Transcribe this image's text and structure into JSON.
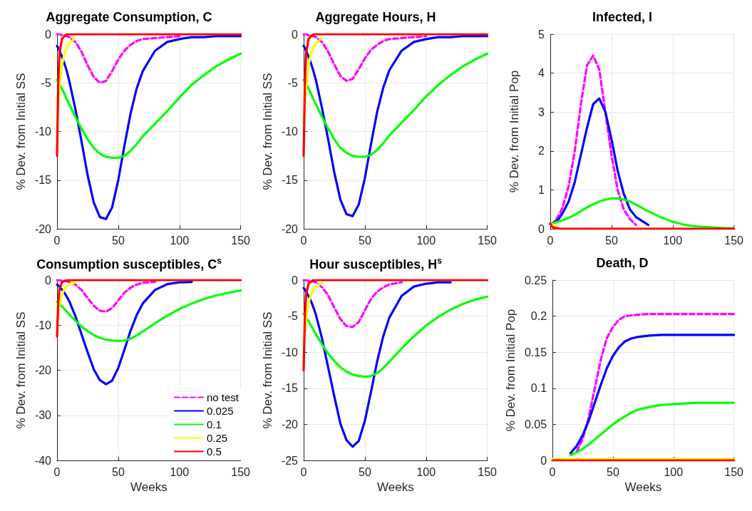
{
  "chart_data": [
    {
      "type": "line",
      "title": "Aggregate Consumption, C",
      "ylabel": "% Dev. from Initial SS",
      "x": [
        0,
        1,
        2,
        4,
        6,
        8,
        10,
        15,
        20,
        25,
        30,
        35,
        40,
        45,
        50,
        55,
        60,
        65,
        70,
        80,
        90,
        100,
        110,
        120,
        130,
        140,
        150
      ],
      "xlim": [
        0,
        150
      ],
      "xticks": [
        0,
        50,
        100,
        150
      ],
      "ylim": [
        -20,
        0
      ],
      "yticks": [
        -20,
        -15,
        -10,
        -5,
        0
      ],
      "grid": true,
      "series": [
        {
          "color": "#ff00ff",
          "line_style": "dashed",
          "values": [
            0,
            0,
            0,
            -0.1,
            -0.15,
            -0.2,
            -0.3,
            -0.8,
            -1.8,
            -3.2,
            -4.4,
            -5,
            -4.8,
            -3.8,
            -2.6,
            -1.7,
            -1.1,
            -0.7,
            -0.5,
            -0.4,
            -0.3,
            -0.2,
            null,
            null,
            null,
            null,
            null
          ]
        },
        {
          "color": "#0000ff",
          "values": [
            -1.2,
            -1.4,
            -1.7,
            -2.3,
            -3,
            -3.8,
            -4.8,
            -7.7,
            -11,
            -14.5,
            -17.3,
            -18.8,
            -19,
            -17.8,
            -15,
            -11.5,
            -8.2,
            -5.6,
            -3.8,
            -1.7,
            -0.8,
            -0.5,
            -0.3,
            -0.3,
            -0.2,
            -0.2,
            -0.2
          ]
        },
        {
          "color": "#00ff00",
          "values": [
            -4.7,
            -4.9,
            -5.1,
            -5.6,
            -6.1,
            -6.7,
            -7.2,
            -8.5,
            -9.7,
            -10.8,
            -11.7,
            -12.3,
            -12.6,
            -12.7,
            -12.7,
            -12.5,
            -12,
            -11.3,
            -10.5,
            -9.2,
            -7.9,
            -6.5,
            -5.2,
            -4.2,
            -3.3,
            -2.6,
            -2
          ]
        },
        {
          "color": "#ffff00",
          "values": [
            -9.2,
            -7.5,
            -5.5,
            -3.2,
            -2,
            -1.3,
            -0.9,
            -0.4,
            null,
            null,
            null,
            null,
            null,
            null,
            null,
            null,
            null,
            null,
            null,
            null,
            null,
            null,
            null,
            null,
            null,
            null,
            null
          ]
        },
        {
          "color": "#ff0000",
          "values": [
            -12.5,
            -5,
            -2,
            -0.5,
            -0.2,
            0,
            0,
            0,
            0,
            0,
            0,
            0,
            0,
            0,
            0,
            0,
            0,
            0,
            0,
            0,
            0,
            0,
            0,
            0,
            0,
            0,
            0
          ]
        }
      ]
    },
    {
      "type": "line",
      "title": "Aggregate Hours, H",
      "ylabel": "% Dev. from Initial SS",
      "x": [
        0,
        1,
        2,
        4,
        6,
        8,
        10,
        15,
        20,
        25,
        30,
        35,
        40,
        45,
        50,
        55,
        60,
        65,
        70,
        80,
        90,
        100,
        110,
        120,
        130,
        140,
        150
      ],
      "xlim": [
        0,
        150
      ],
      "xticks": [
        0,
        50,
        100,
        150
      ],
      "ylim": [
        -20,
        0
      ],
      "yticks": [
        -20,
        -15,
        -10,
        -5,
        0
      ],
      "grid": true,
      "series": [
        {
          "color": "#ff00ff",
          "line_style": "dashed",
          "values": [
            0,
            0,
            0,
            -0.1,
            -0.15,
            -0.2,
            -0.3,
            -0.8,
            -1.8,
            -3.1,
            -4.3,
            -4.8,
            -4.6,
            -3.6,
            -2.5,
            -1.6,
            -1.1,
            -0.7,
            -0.5,
            -0.4,
            -0.3,
            -0.2,
            null,
            null,
            null,
            null,
            null
          ]
        },
        {
          "color": "#0000ff",
          "values": [
            -1.2,
            -1.4,
            -1.7,
            -2.3,
            -3,
            -3.8,
            -4.7,
            -7.6,
            -10.8,
            -14.2,
            -17,
            -18.5,
            -18.7,
            -17.5,
            -14.8,
            -11.3,
            -8,
            -5.5,
            -3.7,
            -1.7,
            -0.8,
            -0.5,
            -0.3,
            -0.3,
            -0.2,
            -0.2,
            -0.2
          ]
        },
        {
          "color": "#00ff00",
          "values": [
            -4.7,
            -4.9,
            -5.1,
            -5.6,
            -6.1,
            -6.7,
            -7.2,
            -8.5,
            -9.7,
            -10.8,
            -11.7,
            -12.2,
            -12.5,
            -12.6,
            -12.6,
            -12.4,
            -11.9,
            -11.2,
            -10.4,
            -9.1,
            -7.8,
            -6.4,
            -5.2,
            -4.2,
            -3.3,
            -2.6,
            -2
          ]
        },
        {
          "color": "#ffff00",
          "values": [
            -9.2,
            -7.5,
            -5.5,
            -3.2,
            -2,
            -1.3,
            -0.9,
            -0.4,
            null,
            null,
            null,
            null,
            null,
            null,
            null,
            null,
            null,
            null,
            null,
            null,
            null,
            null,
            null,
            null,
            null,
            null,
            null
          ]
        },
        {
          "color": "#ff0000",
          "values": [
            -12.5,
            -5,
            -2,
            -0.5,
            -0.2,
            0,
            0,
            0,
            0,
            0,
            0,
            0,
            0,
            0,
            0,
            0,
            0,
            0,
            0,
            0,
            0,
            0,
            0,
            0,
            0,
            0,
            0
          ]
        }
      ]
    },
    {
      "type": "line",
      "title": "Infected, I",
      "ylabel": "% Dev. from Initial Pop",
      "x": [
        0,
        1,
        2,
        4,
        6,
        8,
        10,
        15,
        20,
        25,
        30,
        35,
        40,
        45,
        50,
        55,
        60,
        65,
        70,
        80,
        90,
        100,
        110,
        120,
        130,
        140,
        150
      ],
      "xlim": [
        0,
        150
      ],
      "xticks": [
        0,
        50,
        100,
        150
      ],
      "ylim": [
        0,
        5
      ],
      "yticks": [
        0,
        1,
        2,
        3,
        4,
        5
      ],
      "grid": true,
      "series": [
        {
          "color": "#ff00ff",
          "line_style": "dashed",
          "values": [
            0.13,
            0.13,
            0.15,
            0.2,
            0.3,
            0.4,
            0.55,
            1.1,
            2,
            3.2,
            4.2,
            4.45,
            4.1,
            3,
            1.9,
            1,
            0.5,
            0.25,
            0.1,
            null,
            null,
            null,
            null,
            null,
            null,
            null,
            null
          ]
        },
        {
          "color": "#0000ff",
          "values": [
            0.13,
            0.13,
            0.14,
            0.18,
            0.22,
            0.3,
            0.4,
            0.7,
            1.2,
            1.9,
            2.6,
            3.2,
            3.35,
            3,
            2.3,
            1.5,
            0.9,
            0.5,
            0.3,
            0.1,
            null,
            null,
            null,
            null,
            null,
            null,
            null
          ]
        },
        {
          "color": "#00ff00",
          "values": [
            0.13,
            0.13,
            0.14,
            0.16,
            0.18,
            0.2,
            0.22,
            0.28,
            0.36,
            0.45,
            0.55,
            0.63,
            0.7,
            0.75,
            0.78,
            0.78,
            0.75,
            0.7,
            0.62,
            0.45,
            0.3,
            0.18,
            0.1,
            0.06,
            0.04,
            0.02,
            0.01
          ]
        },
        {
          "color": "#ffff00",
          "values": [
            0.13,
            0.12,
            0.1,
            0.07,
            0.05,
            null,
            null,
            null,
            null,
            null,
            null,
            null,
            null,
            null,
            null,
            null,
            null,
            null,
            null,
            null,
            null,
            null,
            null,
            null,
            null,
            null,
            null
          ]
        },
        {
          "color": "#ff0000",
          "values": [
            0.13,
            0.08,
            0.04,
            0.02,
            0.01,
            0,
            0,
            0,
            0,
            0,
            0,
            0,
            0,
            0,
            0,
            0,
            0,
            0,
            0,
            0,
            0,
            0,
            0,
            0,
            0,
            0,
            0
          ]
        }
      ]
    },
    {
      "type": "line",
      "title": "Consumption susceptibles, C$^{s}$",
      "xlabel": "Weeks",
      "ylabel": "% Dev. from Initial SS",
      "legend": "bottom right",
      "x": [
        0,
        1,
        2,
        4,
        6,
        8,
        10,
        15,
        20,
        25,
        30,
        35,
        40,
        45,
        50,
        55,
        60,
        65,
        70,
        80,
        90,
        100,
        110,
        120,
        130,
        140,
        150
      ],
      "xlim": [
        0,
        150
      ],
      "xticks": [
        0,
        50,
        100,
        150
      ],
      "ylim": [
        -40,
        0
      ],
      "yticks": [
        -40,
        -30,
        -20,
        -10,
        0
      ],
      "grid": true,
      "series": [
        {
          "name": "no test",
          "color": "#ff00ff",
          "line_style": "dashed",
          "values": [
            0,
            0,
            0,
            -0.2,
            -0.2,
            -0.3,
            -0.4,
            -1,
            -2.2,
            -4,
            -5.7,
            -6.8,
            -7,
            -6.2,
            -4.5,
            -2.8,
            -1.7,
            -1,
            -0.6,
            -0.4,
            null,
            null,
            null,
            null,
            null,
            null,
            null
          ]
        },
        {
          "name": "0.025",
          "color": "#0000ff",
          "values": [
            -1,
            -1.2,
            -1.5,
            -2.1,
            -2.8,
            -3.7,
            -4.7,
            -8,
            -12,
            -16,
            -19.8,
            -22.2,
            -23.1,
            -22.3,
            -19.5,
            -15.5,
            -11.3,
            -7.8,
            -5.2,
            -2.2,
            -0.9,
            -0.5,
            -0.4,
            null,
            null,
            null,
            null
          ]
        },
        {
          "name": "0.1",
          "color": "#00ff00",
          "values": [
            -4.8,
            -5,
            -5.3,
            -5.8,
            -6.4,
            -7,
            -7.6,
            -9,
            -10.3,
            -11.3,
            -12.2,
            -12.8,
            -13.2,
            -13.4,
            -13.5,
            -13.4,
            -13,
            -12.3,
            -11.4,
            -9.6,
            -7.9,
            -6.4,
            -5.2,
            -4.2,
            -3.4,
            -2.8,
            -2.3
          ]
        },
        {
          "name": "0.25",
          "color": "#ffff00",
          "values": [
            -9,
            -7.5,
            -5.5,
            -3.2,
            -2,
            -1.3,
            -0.9,
            -0.5,
            null,
            null,
            null,
            null,
            null,
            null,
            null,
            null,
            null,
            null,
            null,
            null,
            null,
            null,
            null,
            null,
            null,
            null,
            null
          ]
        },
        {
          "name": "0.5",
          "color": "#ff0000",
          "values": [
            -12.5,
            -5,
            -2,
            -0.5,
            -0.2,
            0,
            0,
            0,
            0,
            0,
            0,
            0,
            0,
            0,
            0,
            0,
            0,
            0,
            0,
            0,
            0,
            0,
            0,
            0,
            0,
            0,
            0
          ]
        }
      ]
    },
    {
      "type": "line",
      "title": "Hour susceptibles, H$^{s}$",
      "xlabel": "Weeks",
      "ylabel": "% Dev. from Initial SS",
      "x": [
        0,
        1,
        2,
        4,
        6,
        8,
        10,
        15,
        20,
        25,
        30,
        35,
        40,
        45,
        50,
        55,
        60,
        65,
        70,
        80,
        90,
        100,
        110,
        120,
        130,
        140,
        150
      ],
      "xlim": [
        0,
        150
      ],
      "xticks": [
        0,
        50,
        100,
        150
      ],
      "ylim": [
        -25,
        0
      ],
      "yticks": [
        -25,
        -20,
        -15,
        -10,
        -5,
        0
      ],
      "grid": true,
      "series": [
        {
          "color": "#ff00ff",
          "line_style": "dashed",
          "values": [
            0,
            0,
            0,
            -0.1,
            -0.2,
            -0.2,
            -0.3,
            -1,
            -2.1,
            -3.8,
            -5.4,
            -6.4,
            -6.5,
            -5.8,
            -4.2,
            -2.6,
            -1.6,
            -1,
            -0.6,
            -0.3,
            null,
            null,
            null,
            null,
            null,
            null,
            null
          ]
        },
        {
          "color": "#0000ff",
          "values": [
            -1.1,
            -1.3,
            -1.6,
            -2.2,
            -2.9,
            -3.8,
            -4.8,
            -8.1,
            -12.1,
            -16.1,
            -19.9,
            -22.2,
            -23.1,
            -22.3,
            -19.5,
            -15.5,
            -11.3,
            -7.8,
            -5.2,
            -2.2,
            -0.9,
            -0.5,
            -0.3,
            -0.3,
            null,
            null,
            null
          ]
        },
        {
          "color": "#00ff00",
          "values": [
            -4.7,
            -4.9,
            -5.2,
            -5.7,
            -6.3,
            -6.9,
            -7.5,
            -8.9,
            -10.2,
            -11.2,
            -12.1,
            -12.7,
            -13.1,
            -13.3,
            -13.4,
            -13.3,
            -12.9,
            -12.2,
            -11.3,
            -9.5,
            -7.8,
            -6.3,
            -5.1,
            -4.1,
            -3.3,
            -2.7,
            -2.3
          ]
        },
        {
          "color": "#ffff00",
          "values": [
            -9,
            -7.5,
            -5.5,
            -3.2,
            -2,
            -1.3,
            -0.9,
            -0.4,
            null,
            null,
            null,
            null,
            null,
            null,
            null,
            null,
            null,
            null,
            null,
            null,
            null,
            null,
            null,
            null,
            null,
            null,
            null
          ]
        },
        {
          "color": "#ff0000",
          "values": [
            -12.5,
            -5,
            -2,
            -0.5,
            -0.2,
            0,
            0,
            0,
            0,
            0,
            0,
            0,
            0,
            0,
            0,
            0,
            0,
            0,
            0,
            0,
            0,
            0,
            0,
            0,
            0,
            0,
            0
          ]
        }
      ]
    },
    {
      "type": "line",
      "title": "Death, D",
      "xlabel": "Weeks",
      "ylabel": "% Dev. from Initial Pop",
      "x": [
        0,
        1,
        2,
        4,
        6,
        8,
        10,
        15,
        20,
        25,
        30,
        35,
        40,
        45,
        50,
        55,
        60,
        65,
        70,
        80,
        90,
        100,
        110,
        120,
        130,
        140,
        150
      ],
      "xlim": [
        0,
        150
      ],
      "xticks": [
        0,
        50,
        100,
        150
      ],
      "ylim": [
        0,
        0.25
      ],
      "yticks": [
        0,
        0.05,
        0.1,
        0.15,
        0.2,
        0.25
      ],
      "grid": true,
      "series": [
        {
          "color": "#ff00ff",
          "line_style": "dashed",
          "values": [
            null,
            null,
            null,
            null,
            null,
            null,
            null,
            null,
            0.012,
            0.03,
            0.06,
            0.1,
            0.14,
            0.17,
            0.185,
            0.195,
            0.2,
            0.201,
            0.202,
            0.203,
            0.203,
            0.203,
            0.203,
            0.203,
            0.203,
            0.203,
            0.203
          ]
        },
        {
          "color": "#0000ff",
          "values": [
            null,
            null,
            null,
            null,
            null,
            null,
            null,
            0.01,
            0.02,
            0.035,
            0.055,
            0.08,
            0.105,
            0.128,
            0.145,
            0.157,
            0.165,
            0.169,
            0.171,
            0.173,
            0.174,
            0.174,
            0.174,
            0.174,
            0.174,
            0.174,
            0.174
          ]
        },
        {
          "color": "#00ff00",
          "values": [
            null,
            null,
            null,
            null,
            null,
            null,
            null,
            0.007,
            0.011,
            0.016,
            0.022,
            0.029,
            0.036,
            0.043,
            0.05,
            0.056,
            0.061,
            0.066,
            0.07,
            0.074,
            0.077,
            0.078,
            0.079,
            0.08,
            0.08,
            0.08,
            0.08
          ]
        },
        {
          "color": "#ffff00",
          "values": [
            0.002,
            0.002,
            0.002,
            0.002,
            0.002,
            0.002,
            0.002,
            0.002,
            0.002,
            0.002,
            0.002,
            0.002,
            0.002,
            0.002,
            0.002,
            0.002,
            0.002,
            0.002,
            0.002,
            0.002,
            0.002,
            0.002,
            0.002,
            0.002,
            0.002,
            0.002,
            0.002
          ]
        },
        {
          "color": "#ff0000",
          "values": [
            0,
            0,
            0,
            0,
            0,
            0,
            0,
            0,
            0,
            0,
            0,
            0,
            0,
            0,
            0,
            0,
            0,
            0,
            0,
            0,
            0,
            0,
            0,
            0,
            0,
            0,
            0
          ]
        }
      ]
    }
  ]
}
